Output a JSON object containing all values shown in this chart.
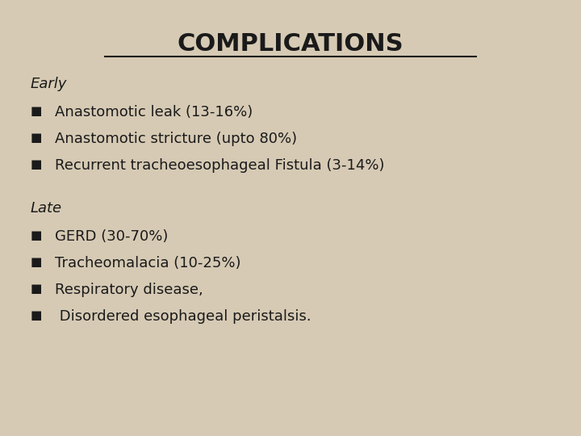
{
  "background_color": "#d6cab4",
  "title": "COMPLICATIONS",
  "title_fontsize": 22,
  "title_color": "#1a1a1a",
  "early_label": "Early",
  "early_items": [
    "Anastomotic leak (13-16%)",
    "Anastomotic stricture (upto 80%)",
    "Recurrent tracheoesophageal Fistula (3-14%)"
  ],
  "late_label": "Late",
  "late_items": [
    "GERD (30-70%)",
    "Tracheomalacia (10-25%)",
    "Respiratory disease,",
    " Disordered esophageal peristalsis."
  ],
  "body_fontsize": 13,
  "label_fontsize": 13,
  "text_color": "#1a1a1a",
  "bullet": "■"
}
